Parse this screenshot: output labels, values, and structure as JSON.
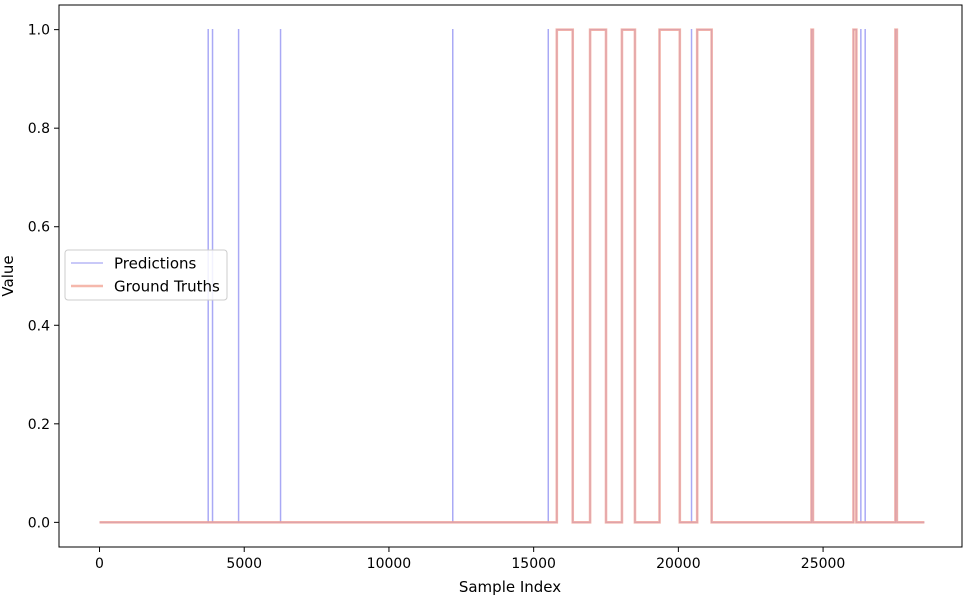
{
  "chart_data": {
    "type": "line",
    "title": "",
    "xlabel": "Sample Index",
    "ylabel": "Value",
    "xlim": [
      -1400,
      29800
    ],
    "ylim": [
      -0.05,
      1.05
    ],
    "xticks": [
      0,
      5000,
      10000,
      15000,
      20000,
      25000
    ],
    "xtick_labels": [
      "0",
      "5000",
      "10000",
      "15000",
      "20000",
      "25000"
    ],
    "yticks": [
      0.0,
      0.2,
      0.4,
      0.6,
      0.8,
      1.0
    ],
    "ytick_labels": [
      "0.0",
      "0.2",
      "0.4",
      "0.6",
      "0.8",
      "1.0"
    ],
    "grid": false,
    "legend_position": "center-left",
    "series": [
      {
        "name": "Predictions",
        "color": "#8c8cf2",
        "x": [
          0,
          3750,
          3750,
          3760,
          3760,
          3900,
          3900,
          3910,
          3910,
          4800,
          4800,
          4810,
          4810,
          6250,
          6250,
          6260,
          6260,
          12200,
          12200,
          12210,
          12210,
          15500,
          15500,
          15510,
          15510,
          15800,
          15800,
          16350,
          16350,
          16950,
          16950,
          17500,
          17500,
          18050,
          18050,
          18500,
          18500,
          19350,
          19350,
          20050,
          20050,
          20450,
          20450,
          20460,
          20460,
          20650,
          20650,
          21150,
          21150,
          24600,
          24600,
          24650,
          24650,
          26050,
          26050,
          26150,
          26150,
          26300,
          26300,
          26310,
          26310,
          26450,
          26450,
          26460,
          26460,
          27500,
          27500,
          27550,
          27550,
          28500
        ],
        "values": [
          0,
          0,
          1,
          1,
          0,
          0,
          1,
          1,
          0,
          0,
          1,
          1,
          0,
          0,
          1,
          1,
          0,
          0,
          1,
          1,
          0,
          0,
          1,
          1,
          0,
          0,
          1,
          1,
          0,
          0,
          1,
          1,
          0,
          0,
          1,
          1,
          0,
          0,
          1,
          1,
          0,
          0,
          1,
          1,
          0,
          0,
          1,
          1,
          0,
          0,
          1,
          1,
          0,
          0,
          1,
          1,
          0,
          0,
          1,
          1,
          0,
          0,
          1,
          1,
          0,
          0,
          1,
          1,
          0,
          0
        ]
      },
      {
        "name": "Ground Truths",
        "color": "#f2a090",
        "x": [
          0,
          15800,
          15800,
          16350,
          16350,
          16950,
          16950,
          17500,
          17500,
          18050,
          18050,
          18500,
          18500,
          19350,
          19350,
          20050,
          20050,
          20650,
          20650,
          21150,
          21150,
          24600,
          24600,
          24650,
          24650,
          26050,
          26050,
          26150,
          26150,
          27500,
          27500,
          27550,
          27550,
          28500
        ],
        "values": [
          0,
          0,
          1,
          1,
          0,
          0,
          1,
          1,
          0,
          0,
          1,
          1,
          0,
          0,
          1,
          1,
          0,
          0,
          1,
          1,
          0,
          0,
          1,
          1,
          0,
          0,
          1,
          1,
          0,
          0,
          1,
          1,
          0,
          0
        ]
      }
    ]
  }
}
